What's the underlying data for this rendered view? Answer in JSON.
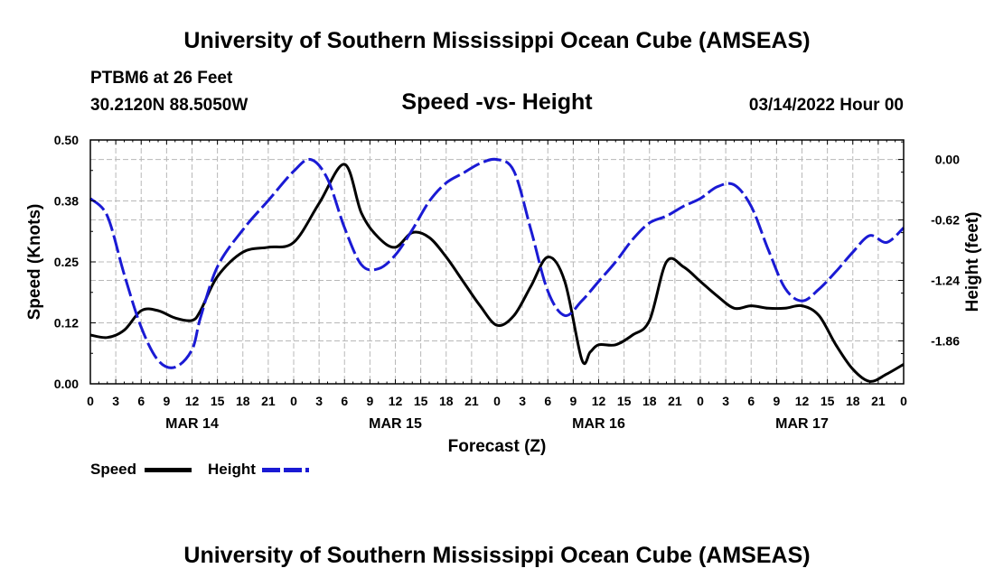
{
  "header": {
    "title": "University of Southern Mississippi Ocean Cube (AMSEAS)",
    "station": "PTBM6 at 26 Feet",
    "coords": "30.2120N  88.5050W",
    "chart_subtitle": "Speed -vs- Height",
    "datetime": "03/14/2022 Hour 00"
  },
  "footer": {
    "title": "University of Southern Mississippi Ocean Cube (AMSEAS)"
  },
  "legend": {
    "speed_label": "Speed",
    "height_label": "Height"
  },
  "chart_data": {
    "type": "line",
    "title": "Speed -vs- Height",
    "xlabel": "Forecast (Z)",
    "ylabel": "Speed (Knots)",
    "y2label": "Height (feet)",
    "x_range": [
      0,
      96
    ],
    "ylim": [
      0,
      0.5
    ],
    "y2lim": [
      -2.3,
      0.2
    ],
    "grid": true,
    "x_tick_hours": [
      0,
      3,
      6,
      9,
      12,
      15,
      18,
      21,
      24,
      27,
      30,
      33,
      36,
      39,
      42,
      45,
      48,
      51,
      54,
      57,
      60,
      63,
      66,
      69,
      72,
      75,
      78,
      81,
      84,
      87,
      90,
      93,
      96
    ],
    "x_tick_labels": [
      "0",
      "3",
      "6",
      "9",
      "12",
      "15",
      "18",
      "21",
      "0",
      "3",
      "6",
      "9",
      "12",
      "15",
      "18",
      "21",
      "0",
      "3",
      "6",
      "9",
      "12",
      "15",
      "18",
      "21",
      "0",
      "3",
      "6",
      "9",
      "12",
      "15",
      "18",
      "21",
      "0"
    ],
    "day_labels": [
      {
        "hour": 12,
        "label": "MAR 14"
      },
      {
        "hour": 36,
        "label": "MAR 15"
      },
      {
        "hour": 60,
        "label": "MAR 16"
      },
      {
        "hour": 84,
        "label": "MAR 17"
      }
    ],
    "y_ticks": [
      0.0,
      0.125,
      0.25,
      0.375,
      0.5
    ],
    "y_tick_labels": [
      "0.00",
      "0.12",
      "0.25",
      "0.38",
      "0.50"
    ],
    "y2_ticks": [
      0.0,
      -0.62,
      -1.24,
      -1.86
    ],
    "y2_tick_labels": [
      "0.00",
      "-0.62",
      "-1.24",
      "-1.86"
    ],
    "series": [
      {
        "name": "Speed",
        "axis": "left",
        "color": "#000000",
        "style": "solid",
        "x": [
          0,
          2,
          4,
          6,
          8,
          10,
          12,
          13,
          15,
          18,
          21,
          24,
          27,
          30,
          32,
          34,
          36,
          38,
          40,
          42,
          44,
          46,
          48,
          50,
          52,
          54,
          56,
          58,
          59,
          60,
          62,
          64,
          66,
          68,
          70,
          72,
          74,
          76,
          78,
          80,
          82,
          84,
          86,
          88,
          90,
          92,
          94,
          96
        ],
        "values": [
          0.1,
          0.095,
          0.11,
          0.15,
          0.15,
          0.135,
          0.13,
          0.15,
          0.22,
          0.27,
          0.28,
          0.29,
          0.37,
          0.45,
          0.35,
          0.3,
          0.28,
          0.31,
          0.3,
          0.26,
          0.21,
          0.16,
          0.12,
          0.14,
          0.2,
          0.26,
          0.21,
          0.05,
          0.065,
          0.08,
          0.08,
          0.1,
          0.13,
          0.25,
          0.24,
          0.21,
          0.18,
          0.155,
          0.16,
          0.155,
          0.155,
          0.16,
          0.14,
          0.08,
          0.03,
          0.005,
          0.02,
          0.04
        ]
      },
      {
        "name": "Height",
        "axis": "right",
        "color": "#1a1ad4",
        "style": "dashed",
        "x": [
          0,
          2,
          4,
          6,
          8,
          10,
          12,
          13,
          15,
          18,
          21,
          24,
          26,
          28,
          30,
          32,
          34,
          36,
          38,
          40,
          42,
          44,
          46,
          48,
          50,
          52,
          54,
          56,
          58,
          60,
          62,
          64,
          66,
          68,
          70,
          72,
          74,
          76,
          78,
          80,
          82,
          84,
          86,
          88,
          90,
          92,
          94,
          96
        ],
        "values": [
          -0.4,
          -0.58,
          -1.18,
          -1.72,
          -2.06,
          -2.13,
          -1.95,
          -1.62,
          -1.1,
          -0.72,
          -0.42,
          -0.12,
          0.0,
          -0.2,
          -0.7,
          -1.08,
          -1.12,
          -0.98,
          -0.72,
          -0.43,
          -0.24,
          -0.14,
          -0.04,
          0.0,
          -0.12,
          -0.72,
          -1.35,
          -1.6,
          -1.45,
          -1.25,
          -1.05,
          -0.82,
          -0.65,
          -0.58,
          -0.48,
          -0.4,
          -0.28,
          -0.26,
          -0.48,
          -0.92,
          -1.32,
          -1.45,
          -1.33,
          -1.15,
          -0.95,
          -0.78,
          -0.85,
          -0.7
        ]
      }
    ]
  }
}
